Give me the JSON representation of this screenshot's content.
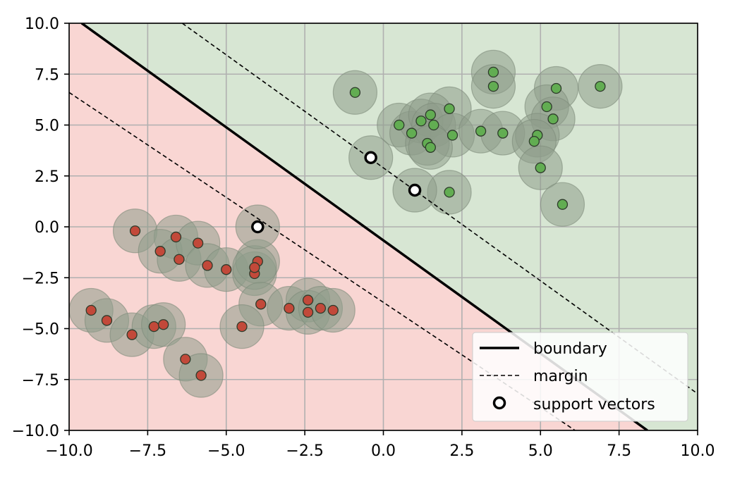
{
  "chart_data": {
    "type": "scatter",
    "title": "",
    "xlabel": "",
    "ylabel": "",
    "xlim": [
      -10,
      10
    ],
    "ylim": [
      -10,
      10
    ],
    "grid": true,
    "xticks": [
      -10,
      -7.5,
      -5,
      -2.5,
      0,
      2.5,
      5,
      7.5,
      10
    ],
    "yticks": [
      -10,
      -7.5,
      -5,
      -2.5,
      0,
      2.5,
      5,
      7.5,
      10
    ],
    "xtick_labels": [
      "−10.0",
      "−7.5",
      "−5.0",
      "−2.5",
      "0.0",
      "2.5",
      "5.0",
      "7.5",
      "10.0"
    ],
    "ytick_labels": [
      "−10.0",
      "−7.5",
      "−5.0",
      "−2.5",
      "0.0",
      "2.5",
      "5.0",
      "7.5",
      "10.0"
    ],
    "colors": {
      "region_negative": "#f9d6d3",
      "region_positive": "#d7e6d3",
      "point_negative": "#c2493a",
      "point_positive": "#62ad52",
      "halo": "#8e9c8a"
    },
    "boundary": {
      "label": "boundary",
      "points": [
        [
          -9.6,
          10.0
        ],
        [
          8.4,
          -10.0
        ]
      ]
    },
    "margins": [
      {
        "label": "margin",
        "points": [
          [
            -6.4,
            10.0
          ],
          [
            10.0,
            -8.2
          ]
        ]
      },
      {
        "label": "margin",
        "points": [
          [
            -10.0,
            6.6
          ],
          [
            6.1,
            -10.0
          ]
        ]
      }
    ],
    "legend": {
      "position": "lower-right",
      "entries": [
        "boundary",
        "margin",
        "support vectors"
      ]
    },
    "series": [
      {
        "class": "negative",
        "points": [
          [
            -7.9,
            -0.2
          ],
          [
            -6.6,
            -0.5
          ],
          [
            -7.1,
            -1.2
          ],
          [
            -6.5,
            -1.6
          ],
          [
            -5.9,
            -0.8
          ],
          [
            -5.6,
            -1.9
          ],
          [
            -5.0,
            -2.1
          ],
          [
            -4.1,
            -2.3
          ],
          [
            -4.0,
            -1.7
          ],
          [
            -4.1,
            -2.0
          ],
          [
            -3.9,
            -3.8
          ],
          [
            -4.5,
            -4.9
          ],
          [
            -3.0,
            -4.0
          ],
          [
            -2.4,
            -3.6
          ],
          [
            -2.4,
            -4.2
          ],
          [
            -2.0,
            -4.0
          ],
          [
            -1.6,
            -4.1
          ],
          [
            -9.3,
            -4.1
          ],
          [
            -8.8,
            -4.6
          ],
          [
            -8.0,
            -5.3
          ],
          [
            -7.3,
            -4.9
          ],
          [
            -7.0,
            -4.8
          ],
          [
            -6.3,
            -6.5
          ],
          [
            -5.8,
            -7.3
          ]
        ]
      },
      {
        "class": "positive",
        "points": [
          [
            -0.9,
            6.6
          ],
          [
            3.5,
            7.6
          ],
          [
            3.5,
            6.9
          ],
          [
            5.5,
            6.8
          ],
          [
            6.9,
            6.9
          ],
          [
            2.1,
            5.8
          ],
          [
            5.2,
            5.9
          ],
          [
            5.4,
            5.3
          ],
          [
            0.5,
            5.0
          ],
          [
            0.9,
            4.6
          ],
          [
            1.2,
            5.2
          ],
          [
            1.5,
            5.5
          ],
          [
            1.6,
            5.0
          ],
          [
            2.2,
            4.5
          ],
          [
            3.1,
            4.7
          ],
          [
            3.8,
            4.6
          ],
          [
            4.9,
            4.5
          ],
          [
            4.8,
            4.2
          ],
          [
            1.4,
            4.1
          ],
          [
            1.5,
            3.9
          ],
          [
            5.0,
            2.9
          ],
          [
            2.1,
            1.7
          ],
          [
            5.7,
            1.1
          ]
        ]
      }
    ],
    "support_vectors": [
      [
        -0.4,
        3.4
      ],
      [
        1.0,
        1.8
      ],
      [
        -4.0,
        0.0
      ]
    ]
  }
}
